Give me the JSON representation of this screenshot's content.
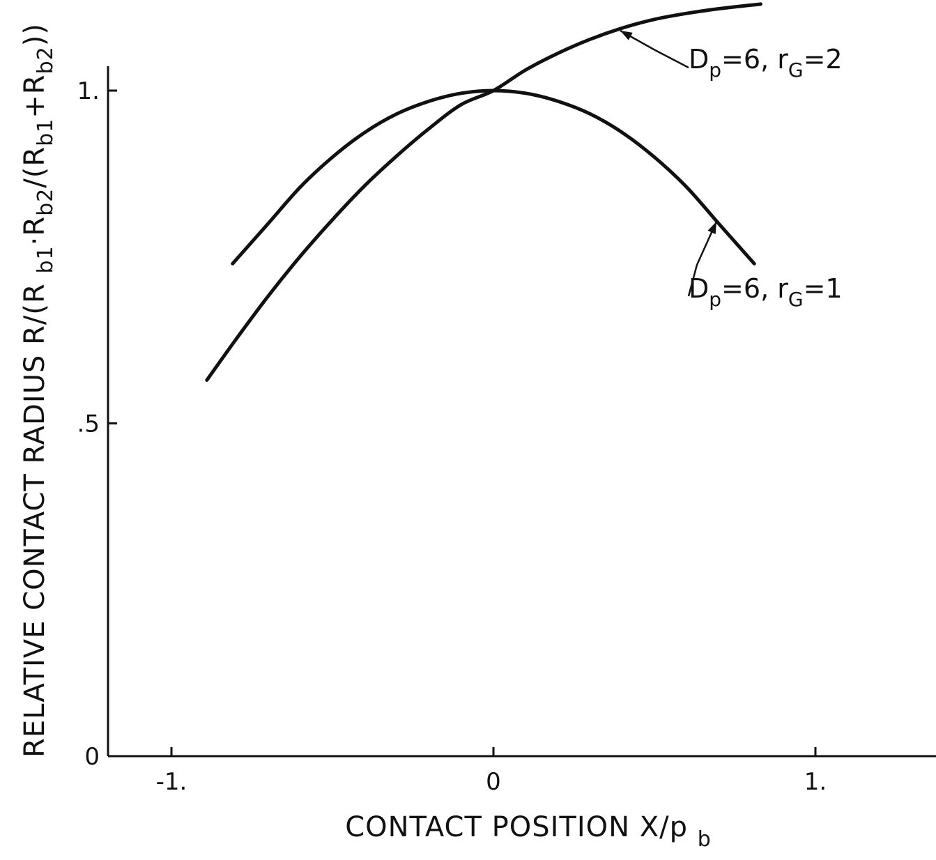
{
  "chart_data": {
    "type": "line",
    "title": "",
    "xlabel": "CONTACT POSITION X/p_b",
    "ylabel": "RELATIVE CONTACT RADIUS R/(R_b1·R_b2/(R_b1+R_b2))",
    "xlim": [
      -1.2,
      1.37
    ],
    "ylim": [
      0,
      1.14
    ],
    "x_ticks": [
      {
        "value": -1.0,
        "label": "-1."
      },
      {
        "value": 0.0,
        "label": "0"
      },
      {
        "value": 1.0,
        "label": "1."
      }
    ],
    "y_ticks": [
      {
        "value": 0.0,
        "label": "0"
      },
      {
        "value": 0.5,
        "label": ".5"
      },
      {
        "value": 1.0,
        "label": "1."
      }
    ],
    "grid": false,
    "series": [
      {
        "name": "D_p=6, r_G=1",
        "x": [
          -0.81,
          -0.7,
          -0.6,
          -0.5,
          -0.4,
          -0.3,
          -0.2,
          -0.1,
          0.0,
          0.1,
          0.2,
          0.3,
          0.4,
          0.5,
          0.6,
          0.7,
          0.81
        ],
        "y": [
          0.74,
          0.8,
          0.855,
          0.9,
          0.937,
          0.965,
          0.984,
          0.996,
          1.0,
          0.996,
          0.984,
          0.965,
          0.937,
          0.9,
          0.855,
          0.8,
          0.74
        ]
      },
      {
        "name": "D_p=6, r_G=2",
        "x": [
          -0.89,
          -0.8,
          -0.7,
          -0.6,
          -0.5,
          -0.4,
          -0.3,
          -0.2,
          -0.1,
          0.0,
          0.1,
          0.2,
          0.3,
          0.4,
          0.5,
          0.6,
          0.7,
          0.83
        ],
        "y": [
          0.565,
          0.626,
          0.691,
          0.751,
          0.806,
          0.857,
          0.902,
          0.943,
          0.979,
          1.0,
          1.031,
          1.056,
          1.077,
          1.094,
          1.107,
          1.116,
          1.123,
          1.13
        ]
      }
    ],
    "annotations": [
      {
        "series": "D_p=6, r_G=2",
        "text_main": "D",
        "text_sub": "p",
        "text_mid": "=6,  r",
        "text_sub2": "G",
        "text_end": "=2",
        "arrow_to_x": 0.4
      },
      {
        "series": "D_p=6, r_G=1",
        "text_main": "D",
        "text_sub": "p",
        "text_mid": "=6,  r",
        "text_sub2": "G",
        "text_end": "=1",
        "arrow_to_x": 0.7
      }
    ]
  }
}
